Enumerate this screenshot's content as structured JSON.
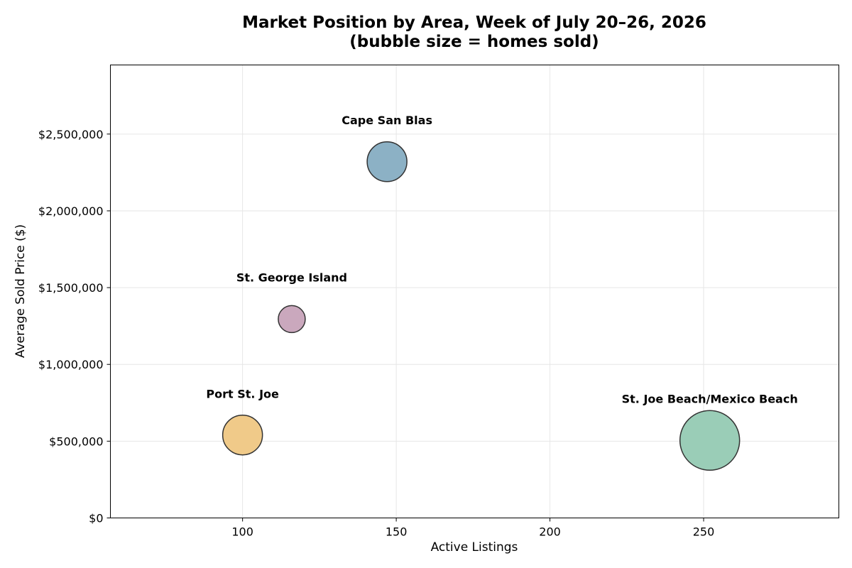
{
  "chart_data": {
    "type": "scatter",
    "title_lines": [
      "Market Position by Area, Week of July 20–26, 2026",
      "(bubble size = homes sold)"
    ],
    "xlabel": "Active Listings",
    "ylabel": "Average Sold Price ($)",
    "xlim": [
      57,
      294
    ],
    "ylim": [
      0,
      2950000
    ],
    "x_ticks": [
      100,
      150,
      200,
      250
    ],
    "x_tick_labels": [
      "100",
      "150",
      "200",
      "250"
    ],
    "y_ticks": [
      0,
      500000,
      1000000,
      1500000,
      2000000,
      2500000
    ],
    "y_tick_labels": [
      "$0",
      "$500,000",
      "$1,000,000",
      "$1,500,000",
      "$2,000,000",
      "$2,500,000"
    ],
    "grid": true,
    "points": [
      {
        "label": "Port St. Joe",
        "x": 100,
        "y": 540000,
        "color": "#f0c987"
      },
      {
        "label": "Cape San Blas",
        "x": 147,
        "y": 2320000,
        "color": "#8aafc4"
      },
      {
        "label": "St. George Island",
        "x": 116,
        "y": 1295000,
        "color": "#c9a6bc"
      },
      {
        "label": "St. Joe Beach/Mexico Beach",
        "x": 252,
        "y": 505000,
        "color": "#98ccb6"
      }
    ]
  }
}
